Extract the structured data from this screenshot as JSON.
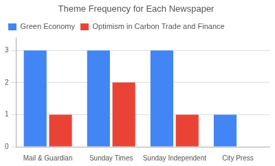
{
  "chart_data": {
    "type": "bar",
    "title": "Theme Frequency for Each Newspaper",
    "categories": [
      "Mail & Guardian",
      "Sunday Times",
      "Sunday Independent",
      "City Press"
    ],
    "series": [
      {
        "name": "Green Economy",
        "color": "#4285F4",
        "values": [
          3,
          3,
          3,
          1
        ]
      },
      {
        "name": "Optimism in Carbon Trade and Finance",
        "color": "#EA4335",
        "values": [
          1,
          2,
          1,
          0
        ]
      }
    ],
    "ylim": [
      0,
      3.4
    ],
    "yticks": [
      0,
      1,
      2,
      3
    ],
    "grid": true,
    "legend": "upper left"
  }
}
